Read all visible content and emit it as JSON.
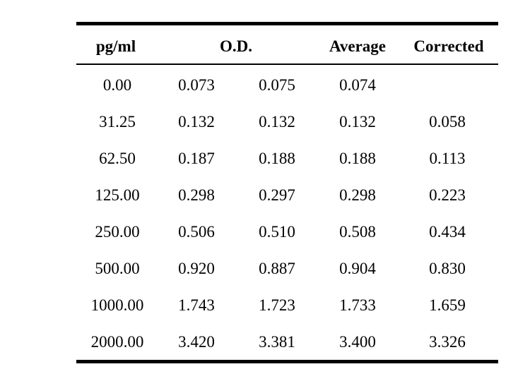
{
  "table": {
    "headers": {
      "pg_ml": "pg/ml",
      "od": "O.D.",
      "average": "Average",
      "corrected": "Corrected"
    },
    "rows": [
      {
        "pg_ml": "0.00",
        "od1": "0.073",
        "od2": "0.075",
        "average": "0.074",
        "corrected": ""
      },
      {
        "pg_ml": "31.25",
        "od1": "0.132",
        "od2": "0.132",
        "average": "0.132",
        "corrected": "0.058"
      },
      {
        "pg_ml": "62.50",
        "od1": "0.187",
        "od2": "0.188",
        "average": "0.188",
        "corrected": "0.113"
      },
      {
        "pg_ml": "125.00",
        "od1": "0.298",
        "od2": "0.297",
        "average": "0.298",
        "corrected": "0.223"
      },
      {
        "pg_ml": "250.00",
        "od1": "0.506",
        "od2": "0.510",
        "average": "0.508",
        "corrected": "0.434"
      },
      {
        "pg_ml": "500.00",
        "od1": "0.920",
        "od2": "0.887",
        "average": "0.904",
        "corrected": "0.830"
      },
      {
        "pg_ml": "1000.00",
        "od1": "1.743",
        "od2": "1.723",
        "average": "1.733",
        "corrected": "1.659"
      },
      {
        "pg_ml": "2000.00",
        "od1": "3.420",
        "od2": "3.381",
        "average": "3.400",
        "corrected": "3.326"
      }
    ]
  }
}
